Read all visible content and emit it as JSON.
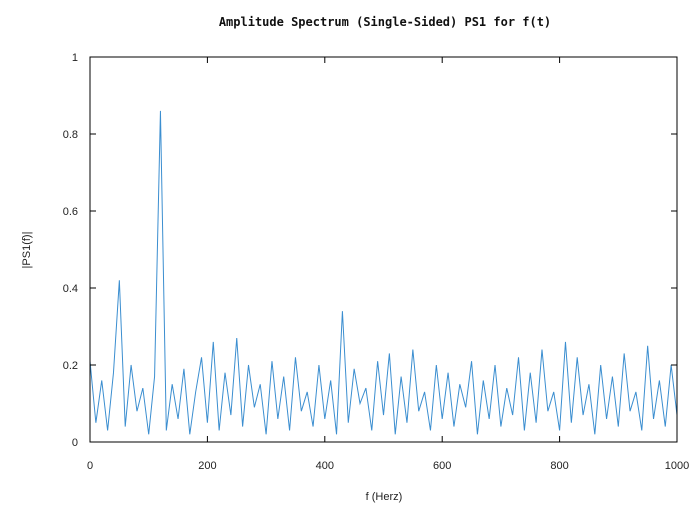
{
  "chart_data": {
    "type": "line",
    "title": "Amplitude Spectrum (Single-Sided) PS1 for f(t)",
    "xlabel": "f (Herz)",
    "ylabel": "|PS1(f)|",
    "xlim": [
      0,
      1000
    ],
    "ylim": [
      0,
      1
    ],
    "xticks": [
      0,
      200,
      400,
      600,
      800,
      1000
    ],
    "yticks": [
      0,
      0.2,
      0.4,
      0.6,
      0.8,
      1
    ],
    "xtick_labels": [
      "0",
      "200",
      "400",
      "600",
      "800",
      "1000"
    ],
    "ytick_labels": [
      "0",
      "0.2",
      "0.4",
      "0.6",
      "0.8",
      "1"
    ],
    "grid": false,
    "legend": "none",
    "series": [
      {
        "color": "#3b8ed0",
        "x": [
          0,
          10,
          20,
          30,
          40,
          50,
          60,
          70,
          80,
          90,
          100,
          110,
          120,
          130,
          140,
          150,
          160,
          170,
          180,
          190,
          200,
          210,
          220,
          230,
          240,
          250,
          260,
          270,
          280,
          290,
          300,
          310,
          320,
          330,
          340,
          350,
          360,
          370,
          380,
          390,
          400,
          410,
          420,
          430,
          440,
          450,
          460,
          470,
          480,
          490,
          500,
          510,
          520,
          530,
          540,
          550,
          560,
          570,
          580,
          590,
          600,
          610,
          620,
          630,
          640,
          650,
          660,
          670,
          680,
          690,
          700,
          710,
          720,
          730,
          740,
          750,
          760,
          770,
          780,
          790,
          800,
          810,
          820,
          830,
          840,
          850,
          860,
          870,
          880,
          890,
          900,
          910,
          920,
          930,
          940,
          950,
          960,
          970,
          980,
          990,
          1000
        ],
        "y": [
          0.21,
          0.05,
          0.16,
          0.03,
          0.18,
          0.42,
          0.04,
          0.2,
          0.08,
          0.14,
          0.02,
          0.17,
          0.86,
          0.03,
          0.15,
          0.06,
          0.19,
          0.02,
          0.13,
          0.22,
          0.05,
          0.26,
          0.03,
          0.18,
          0.07,
          0.27,
          0.04,
          0.2,
          0.09,
          0.15,
          0.02,
          0.21,
          0.06,
          0.17,
          0.03,
          0.22,
          0.08,
          0.13,
          0.04,
          0.2,
          0.06,
          0.16,
          0.02,
          0.34,
          0.05,
          0.19,
          0.1,
          0.14,
          0.03,
          0.21,
          0.07,
          0.23,
          0.02,
          0.17,
          0.05,
          0.24,
          0.08,
          0.13,
          0.03,
          0.2,
          0.06,
          0.18,
          0.04,
          0.15,
          0.09,
          0.21,
          0.02,
          0.16,
          0.06,
          0.2,
          0.04,
          0.14,
          0.07,
          0.22,
          0.03,
          0.18,
          0.05,
          0.24,
          0.08,
          0.13,
          0.03,
          0.26,
          0.05,
          0.22,
          0.07,
          0.15,
          0.02,
          0.2,
          0.06,
          0.17,
          0.04,
          0.23,
          0.08,
          0.13,
          0.03,
          0.25,
          0.06,
          0.16,
          0.04,
          0.2,
          0.07
        ]
      }
    ]
  }
}
